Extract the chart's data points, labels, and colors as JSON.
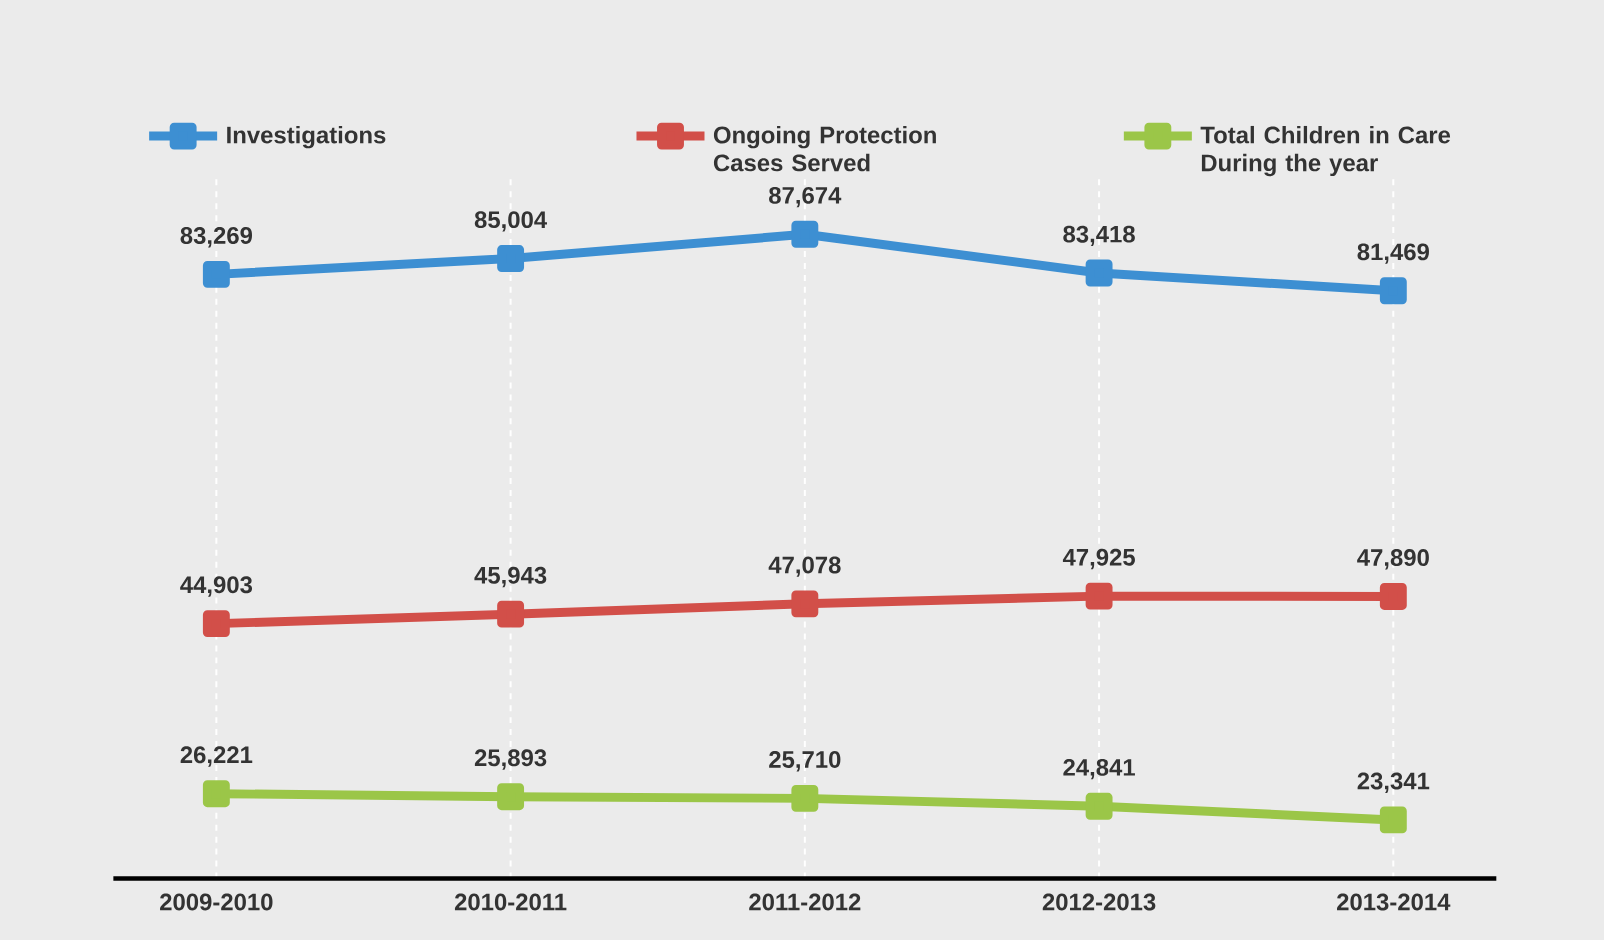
{
  "chart_data": {
    "type": "line",
    "categories": [
      "2009-2010",
      "2010-2011",
      "2011-2012",
      "2012-2013",
      "2013-2014"
    ],
    "series": [
      {
        "name": "Investigations",
        "color": "#3d8fd2",
        "values": [
          83269,
          85004,
          87674,
          83418,
          81469
        ],
        "value_labels": [
          "83,269",
          "85,004",
          "87,674",
          "83,418",
          "81,469"
        ]
      },
      {
        "name": "Ongoing Protection Cases Served",
        "color": "#d24f49",
        "values": [
          44903,
          45943,
          47078,
          47925,
          47890
        ],
        "value_labels": [
          "44,903",
          "45,943",
          "47,078",
          "47,925",
          "47,890"
        ]
      },
      {
        "name": "Total Children in Care During the year",
        "color": "#9bc648",
        "values": [
          26221,
          25893,
          25710,
          24841,
          23341
        ],
        "value_labels": [
          "26,221",
          "25,893",
          "25,710",
          "24,841",
          "23,341"
        ]
      }
    ],
    "tick_labels": "x",
    "grid": "x",
    "legend": "top",
    "marker": "square",
    "line_style": "solid"
  }
}
